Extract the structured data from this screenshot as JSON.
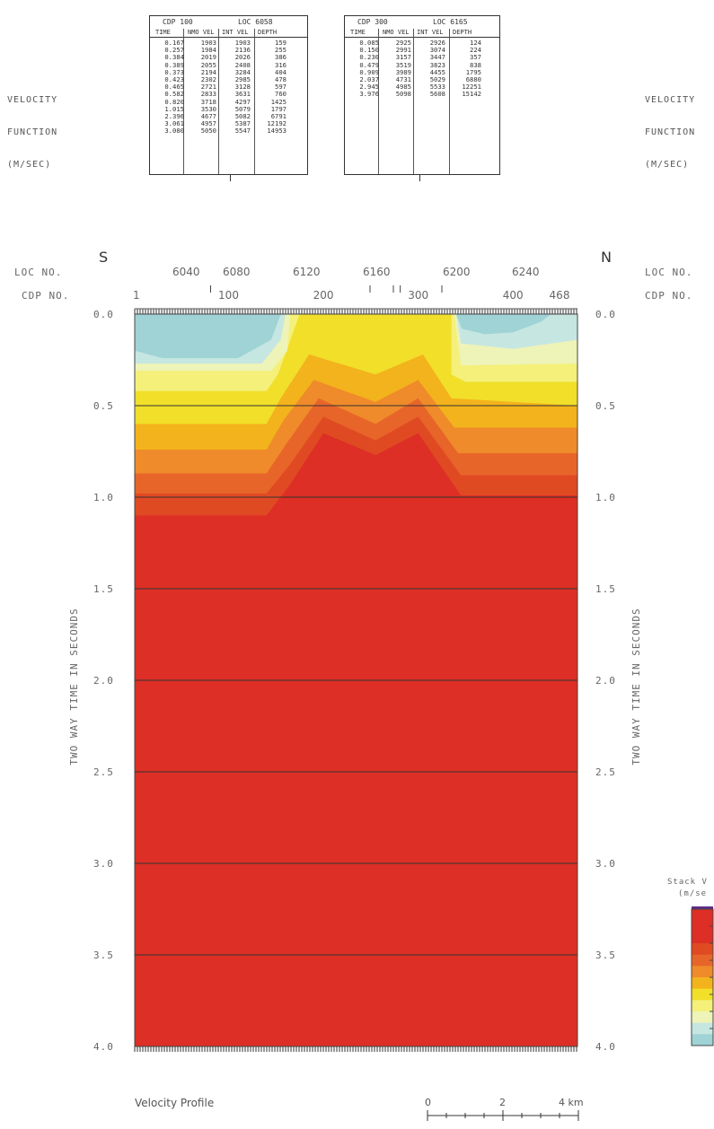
{
  "velocity_function_label_left": [
    "VELOCITY",
    "FUNCTION",
    "(M/SEC)"
  ],
  "velocity_function_label_right": [
    "VELOCITY",
    "FUNCTION",
    "(M/SEC)"
  ],
  "tables": [
    {
      "cdp_label": "CDP 100",
      "loc_label": "LOC 6058",
      "columns": [
        "TIME",
        "NMO VEL",
        "INT VEL",
        "DEPTH"
      ],
      "rows": [
        [
          "0.167",
          "1903",
          "1903",
          "159"
        ],
        [
          "0.257",
          "1984",
          "2136",
          "255"
        ],
        [
          "0.384",
          "2019",
          "2026",
          "386"
        ],
        [
          "0.389",
          "2055",
          "2408",
          "316"
        ],
        [
          "0.373",
          "2194",
          "3284",
          "404"
        ],
        [
          "0.423",
          "2302",
          "2985",
          "478"
        ],
        [
          "0.465",
          "2721",
          "3128",
          "597"
        ],
        [
          "0.582",
          "2833",
          "3631",
          "760"
        ],
        [
          "0.820",
          "3718",
          "4297",
          "1425"
        ],
        [
          "1.015",
          "3530",
          "5079",
          "1797"
        ],
        [
          "2.396",
          "4677",
          "5082",
          "6791"
        ],
        [
          "3.061",
          "4957",
          "5387",
          "12192"
        ],
        [
          "3.080",
          "5050",
          "5547",
          "14953"
        ]
      ]
    },
    {
      "cdp_label": "CDP 300",
      "loc_label": "LOC 6165",
      "columns": [
        "TIME",
        "NMO VEL",
        "INT VEL",
        "DEPTH"
      ],
      "rows": [
        [
          "0.085",
          "2925",
          "2926",
          "124"
        ],
        [
          "0.150",
          "2991",
          "3074",
          "224"
        ],
        [
          "0.230",
          "3157",
          "3447",
          "357"
        ],
        [
          "0.479",
          "3519",
          "3823",
          "838"
        ],
        [
          "0.909",
          "3989",
          "4455",
          "1795"
        ],
        [
          "2.037",
          "4731",
          "5029",
          "6880"
        ],
        [
          "2.945",
          "4985",
          "5533",
          "12251"
        ],
        [
          "3.976",
          "5098",
          "5608",
          "15142"
        ]
      ]
    }
  ],
  "left_header": {
    "loc_no": "LOC NO.",
    "cdp_no": "CDP NO."
  },
  "right_header": {
    "loc_no": "LOC NO.",
    "cdp_no": "CDP NO."
  },
  "direction_left": "S",
  "direction_right": "N",
  "profile_label": "Velocity Profile",
  "scale_bar": {
    "labels": [
      "0",
      "2",
      "4 km"
    ]
  },
  "legend": {
    "title": [
      "Stack V",
      "(m/se"
    ]
  },
  "colors": {
    "red": "#dd2f25",
    "red_orange": "#e04a23",
    "orange": "#e8652a",
    "light_orange": "#ef8b2a",
    "amber": "#f3b31c",
    "yellow": "#f1df2a",
    "pale_yellow": "#f4f07a",
    "cream": "#eef3b8",
    "light_cyan": "#c6e6e1",
    "cyan": "#9fd3d6"
  },
  "chart_data": {
    "type": "heatmap",
    "title": "",
    "ylabel": "TWO WAY TIME IN SECONDS",
    "ylim": [
      0.0,
      4.0
    ],
    "y_ticks": [
      "0.0",
      "0.5",
      "1.0",
      "1.5",
      "2.0",
      "2.5",
      "3.0",
      "3.5",
      "4.0"
    ],
    "loc_ticks": [
      6040,
      6080,
      6120,
      6160,
      6200,
      6240
    ],
    "cdp_ticks": [
      "1",
      "100",
      "200",
      "300",
      "400",
      "468"
    ],
    "cdp_range": [
      1,
      468
    ],
    "velocity_control_cdps": [
      100,
      300
    ],
    "horizontal_grid": true,
    "velocity_layers": [
      {
        "color": "red",
        "depth_at_cdp": [
          [
            1,
            1.33
          ],
          [
            140,
            1.33
          ],
          [
            165,
            1.02
          ],
          [
            205,
            0.72
          ],
          [
            255,
            0.84
          ],
          [
            300,
            0.72
          ],
          [
            350,
            1.1
          ],
          [
            468,
            1.1
          ]
        ]
      },
      {
        "color": "red_orange",
        "depth_at_cdp": [
          [
            1,
            1.1
          ],
          [
            140,
            1.1
          ],
          [
            165,
            0.93
          ],
          [
            200,
            0.65
          ],
          [
            255,
            0.77
          ],
          [
            300,
            0.65
          ],
          [
            345,
            0.99
          ],
          [
            468,
            0.99
          ]
        ]
      },
      {
        "color": "orange",
        "depth_at_cdp": [
          [
            1,
            0.98
          ],
          [
            140,
            0.98
          ],
          [
            165,
            0.82
          ],
          [
            200,
            0.56
          ],
          [
            255,
            0.69
          ],
          [
            300,
            0.56
          ],
          [
            345,
            0.88
          ],
          [
            468,
            0.88
          ]
        ]
      },
      {
        "color": "light_orange",
        "depth_at_cdp": [
          [
            1,
            0.87
          ],
          [
            140,
            0.87
          ],
          [
            162,
            0.7
          ],
          [
            195,
            0.46
          ],
          [
            255,
            0.6
          ],
          [
            300,
            0.46
          ],
          [
            342,
            0.76
          ],
          [
            468,
            0.76
          ]
        ]
      },
      {
        "color": "amber",
        "depth_at_cdp": [
          [
            1,
            0.74
          ],
          [
            140,
            0.74
          ],
          [
            158,
            0.58
          ],
          [
            190,
            0.36
          ],
          [
            255,
            0.48
          ],
          [
            300,
            0.36
          ],
          [
            338,
            0.62
          ],
          [
            468,
            0.62
          ]
        ]
      },
      {
        "color": "yellow",
        "depth_at_cdp": [
          [
            1,
            0.6
          ],
          [
            140,
            0.6
          ],
          [
            155,
            0.46
          ],
          [
            185,
            0.22
          ],
          [
            255,
            0.33
          ],
          [
            305,
            0.22
          ],
          [
            335,
            0.46
          ],
          [
            468,
            0.5
          ]
        ]
      },
      {
        "color": "pale_yellow",
        "depth_at_cdp": [
          [
            1,
            0.42
          ],
          [
            140,
            0.42
          ],
          [
            152,
            0.33
          ],
          [
            175,
            0.0
          ],
          [
            335,
            0.0
          ],
          [
            335,
            0.33
          ],
          [
            350,
            0.37
          ],
          [
            468,
            0.37
          ]
        ]
      },
      {
        "color": "cream",
        "depth_at_cdp": [
          [
            1,
            0.31
          ],
          [
            145,
            0.31
          ],
          [
            162,
            0.2
          ],
          [
            165,
            0.0
          ],
          [
            338,
            0.0
          ],
          [
            345,
            0.28
          ],
          [
            468,
            0.27
          ]
        ]
      },
      {
        "color": "light_cyan",
        "depth_at_cdp": [
          [
            1,
            0.27
          ],
          [
            135,
            0.27
          ],
          [
            155,
            0.14
          ],
          [
            160,
            0.0
          ],
          [
            340,
            0.0
          ],
          [
            345,
            0.16
          ],
          [
            400,
            0.19
          ],
          [
            468,
            0.14
          ]
        ]
      },
      {
        "color": "cyan",
        "depth_at_cdp": [
          [
            1,
            0.2
          ],
          [
            30,
            0.24
          ],
          [
            110,
            0.24
          ],
          [
            145,
            0.14
          ],
          [
            155,
            0.0
          ],
          [
            340,
            0.0
          ],
          [
            346,
            0.08
          ],
          [
            370,
            0.11
          ],
          [
            400,
            0.1
          ],
          [
            430,
            0.04
          ],
          [
            440,
            0.0
          ]
        ]
      }
    ]
  }
}
